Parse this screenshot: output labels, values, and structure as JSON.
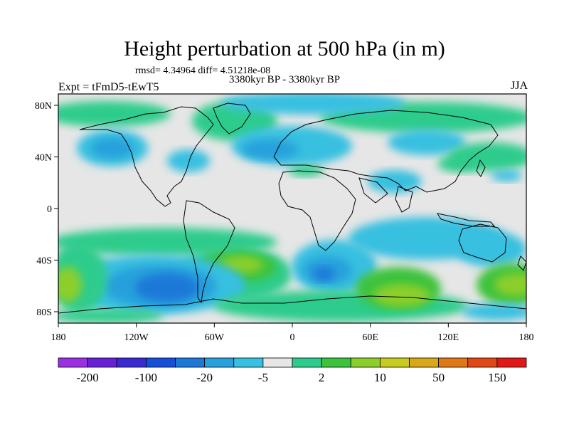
{
  "title": "Height perturbation at 500 hPa (in m)",
  "stats": "rmsd= 4.34964 diff= 4.51218e-08",
  "period": "3380kyr BP - 3380kyr BP",
  "expt": "Expt = tFmD5-tEwT5",
  "season": "JJA",
  "lat_ticks": [
    "80N",
    "40N",
    "0",
    "40S",
    "80S"
  ],
  "lon_ticks": [
    "180",
    "120W",
    "60W",
    "0",
    "60E",
    "120E",
    "180"
  ],
  "colorbar": {
    "labels": [
      "-200",
      "-100",
      "-20",
      "-5",
      "2",
      "10",
      "50",
      "150"
    ],
    "colors": [
      "#9b30e0",
      "#6a1fd6",
      "#3a2ad0",
      "#1550d8",
      "#1e78d8",
      "#28a0dc",
      "#38c0e0",
      "#e6e6e6",
      "#2ecc8c",
      "#3cc23c",
      "#8ccf2c",
      "#c8cc1e",
      "#d8a818",
      "#e07818",
      "#e04818",
      "#e01818"
    ]
  },
  "colors": {
    "neutral": "#e6e6e6",
    "light_blue": "#38c0e0",
    "mid_blue": "#28a0dc",
    "blue": "#1e78d8",
    "teal_green": "#2ecc8c",
    "green": "#3cc23c",
    "yellow_green": "#8ccf2c",
    "yellow": "#c8cc1e",
    "coastline": "#000000"
  }
}
